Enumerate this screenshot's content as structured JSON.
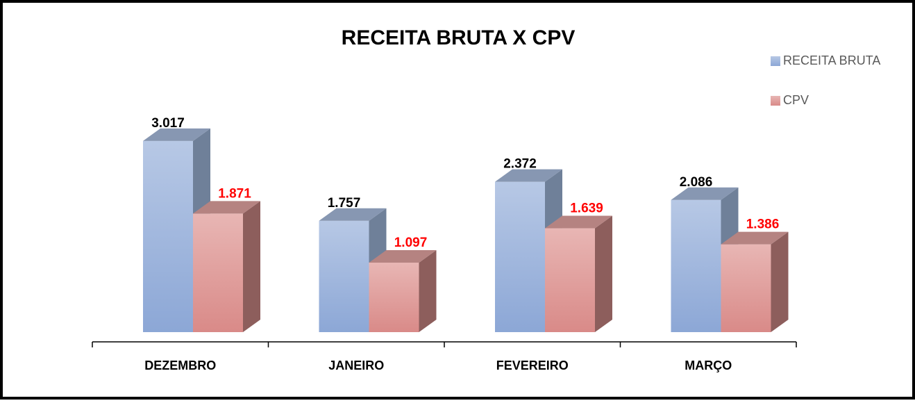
{
  "chart_data": {
    "type": "bar3d",
    "title": "RECEITA BRUTA X CPV",
    "categories": [
      "DEZEMBRO",
      "JANEIRO",
      "FEVEREIRO",
      "MARÇO"
    ],
    "legend": "right",
    "series": [
      {
        "name": "RECEITA BRUTA",
        "color": "#9fb4dc",
        "values": [
          3017,
          1757,
          2372,
          2086
        ],
        "value_labels": [
          "3.017",
          "1.757",
          "2.372",
          "2.086"
        ],
        "label_color": "#000000"
      },
      {
        "name": "CPV",
        "color": "#dfa19f",
        "values": [
          1871,
          1097,
          1639,
          1386
        ],
        "value_labels": [
          "1.871",
          "1.097",
          "1.639",
          "1.386"
        ],
        "label_color": "#ff0000"
      }
    ]
  }
}
